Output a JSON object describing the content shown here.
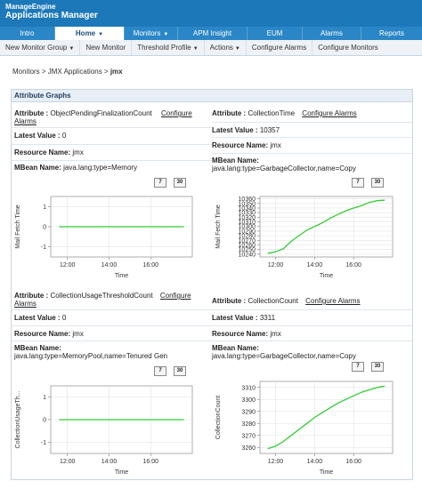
{
  "header": {
    "logo_line1": "ManageEngine",
    "logo_line2": "Applications Manager"
  },
  "nav": {
    "tabs": [
      {
        "label": "Intro",
        "active": false
      },
      {
        "label": "Home",
        "active": true
      },
      {
        "label": "Monitors",
        "active": false
      },
      {
        "label": "APM Insight",
        "active": false
      },
      {
        "label": "EUM",
        "active": false
      },
      {
        "label": "Alarms",
        "active": false
      },
      {
        "label": "Reports",
        "active": false
      }
    ]
  },
  "subnav": {
    "items": [
      {
        "label": "New Monitor Group",
        "dropdown": true
      },
      {
        "label": "New Monitor",
        "dropdown": false
      },
      {
        "label": "Threshold Profile",
        "dropdown": true
      },
      {
        "label": "Actions",
        "dropdown": true
      },
      {
        "label": "Configure Alarms",
        "dropdown": false
      },
      {
        "label": "Configure Monitors",
        "dropdown": false
      }
    ]
  },
  "breadcrumb": {
    "prefix": "Monitors > JMX Applications > ",
    "current": "jmx"
  },
  "panel": {
    "title": "Attribute Graphs"
  },
  "labels": {
    "attribute": "Attribute :",
    "latest_value": "Latest Value :",
    "resource_name": "Resource Name:",
    "mbean_name": "MBean Name:",
    "configure_alarms": "Configure Alarms",
    "configure_word": "Configure",
    "alarms_word": "Alarms",
    "period_7": "7",
    "period_30": "30",
    "x_axis_label": "Time"
  },
  "graphs": [
    {
      "attribute": "ObjectPendingFinalizationCount",
      "latest_value": "0",
      "resource_name": "jmx",
      "mbean_name": "java.lang:type=Memory"
    },
    {
      "attribute": "CollectionTime",
      "latest_value": "10357",
      "resource_name": "jmx",
      "mbean_name": "java.lang:type=GarbageCollector,name=Copy"
    },
    {
      "attribute": "CollectionUsageThresholdCount",
      "latest_value": "0",
      "resource_name": "jmx",
      "mbean_name": "java.lang:type=MemoryPool,name=Tenured Gen"
    },
    {
      "attribute": "CollectionCount",
      "latest_value": "3311",
      "resource_name": "jmx",
      "mbean_name": "java.lang:type=GarbageCollector,name=Copy"
    }
  ],
  "chart_data": [
    {
      "type": "line",
      "ylabel": "Mail Fetch Time",
      "xlabel": "Time",
      "x_ticks": [
        "12:00",
        "14:00",
        "16:00"
      ],
      "y_ticks": [
        -1,
        0,
        1
      ],
      "ylim": [
        -1.5,
        1.5
      ],
      "xlim": [
        11.2,
        18.0
      ],
      "series": [
        {
          "color": "#33cc33",
          "x": [
            11.6,
            17.6
          ],
          "y": [
            0,
            0
          ]
        }
      ]
    },
    {
      "type": "line",
      "ylabel": "Mail Fetch Time",
      "xlabel": "Time",
      "x_ticks": [
        "12:00",
        "14:00",
        "16:00"
      ],
      "y_ticks": [
        10240,
        10250,
        10260,
        10270,
        10280,
        10290,
        10300,
        10310,
        10320,
        10330,
        10340,
        10350,
        10360
      ],
      "ylim": [
        10234,
        10365
      ],
      "xlim": [
        11.2,
        18.0
      ],
      "series": [
        {
          "color": "#33cc33",
          "x": [
            11.6,
            12.0,
            12.4,
            12.8,
            13.2,
            13.6,
            14.0,
            14.4,
            14.8,
            15.2,
            15.6,
            16.0,
            16.4,
            16.8,
            17.2,
            17.6
          ],
          "y": [
            10242,
            10245,
            10252,
            10268,
            10280,
            10292,
            10300,
            10308,
            10318,
            10326,
            10334,
            10340,
            10345,
            10352,
            10356,
            10357
          ]
        }
      ]
    },
    {
      "type": "line",
      "ylabel": "CollectionUsageTh...",
      "xlabel": "Time",
      "x_ticks": [
        "12:00",
        "14:00",
        "16:00"
      ],
      "y_ticks": [
        -1,
        0,
        1
      ],
      "ylim": [
        -1.5,
        1.5
      ],
      "xlim": [
        11.2,
        18.0
      ],
      "series": [
        {
          "color": "#33cc33",
          "x": [
            11.6,
            17.6
          ],
          "y": [
            0,
            0
          ]
        }
      ]
    },
    {
      "type": "line",
      "ylabel": "CollectionCount",
      "xlabel": "Time",
      "x_ticks": [
        "12:00",
        "14:00",
        "16:00"
      ],
      "y_ticks": [
        3260,
        3270,
        3280,
        3290,
        3300,
        3310
      ],
      "ylim": [
        3255,
        3315
      ],
      "xlim": [
        11.2,
        18.0
      ],
      "series": [
        {
          "color": "#33cc33",
          "x": [
            11.6,
            12.0,
            12.4,
            12.8,
            13.2,
            13.6,
            14.0,
            14.4,
            14.8,
            15.2,
            15.6,
            16.0,
            16.4,
            16.8,
            17.2,
            17.6
          ],
          "y": [
            3259,
            3261,
            3265,
            3270,
            3275,
            3280,
            3285,
            3289,
            3293,
            3297,
            3300,
            3303,
            3306,
            3308,
            3310,
            3311
          ]
        }
      ]
    }
  ]
}
